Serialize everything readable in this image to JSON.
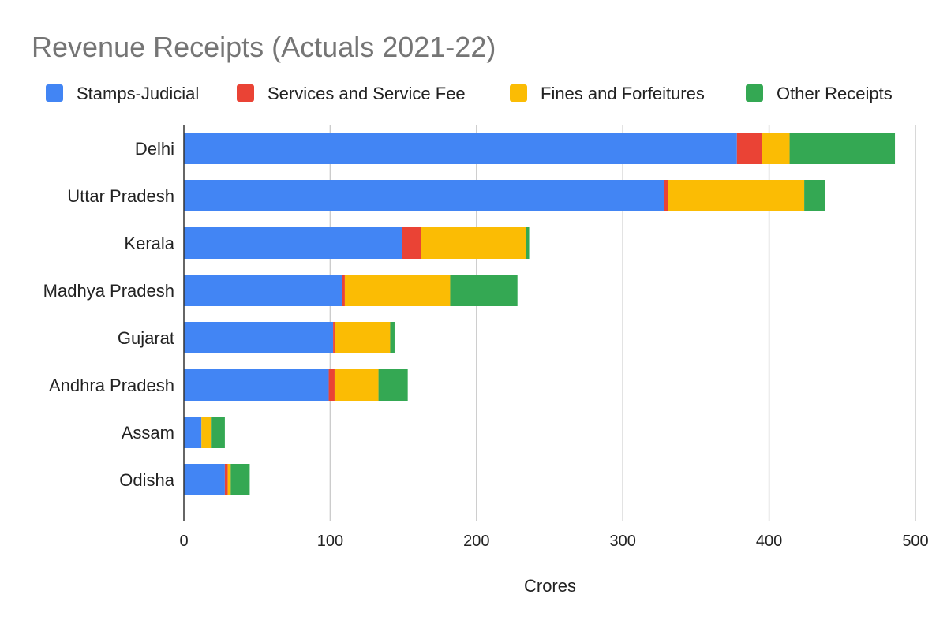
{
  "chart_data": {
    "type": "bar",
    "orientation": "horizontal",
    "stacked": true,
    "title": "Revenue Receipts (Actuals 2021-22)",
    "xlabel": "Crores",
    "ylabel": "",
    "xlim": [
      0,
      500
    ],
    "x_ticks": [
      0,
      100,
      200,
      300,
      400,
      500
    ],
    "grid": true,
    "legend_position": "top",
    "categories": [
      "Delhi",
      "Uttar Pradesh",
      "Kerala",
      "Madhya Pradesh",
      "Gujarat",
      "Andhra Pradesh",
      "Assam",
      "Odisha"
    ],
    "series": [
      {
        "name": "Stamps-Judicial",
        "color": "#4285f4",
        "values": [
          378,
          328,
          149,
          108,
          102,
          99,
          12,
          28
        ]
      },
      {
        "name": "Services and Service Fee",
        "color": "#ea4335",
        "values": [
          17,
          3,
          13,
          2,
          1,
          4,
          0,
          2
        ]
      },
      {
        "name": "Fines and Forfeitures",
        "color": "#fbbc04",
        "values": [
          19,
          93,
          72,
          72,
          38,
          30,
          7,
          2
        ]
      },
      {
        "name": "Other Receipts",
        "color": "#34a853",
        "values": [
          72,
          14,
          2,
          46,
          3,
          20,
          9,
          13
        ]
      }
    ]
  }
}
